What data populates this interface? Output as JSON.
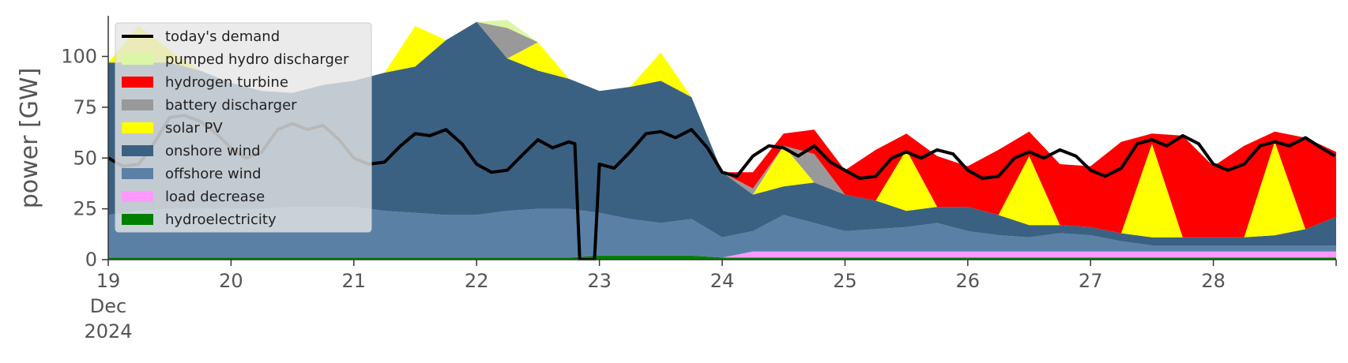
{
  "chart_data": {
    "type": "area",
    "title": "",
    "ylabel": "power [GW]",
    "xlabel": "",
    "ylim": [
      0,
      120
    ],
    "xlim": [
      19,
      29
    ],
    "y_ticks": [
      0,
      25,
      50,
      75,
      100
    ],
    "x_ticks": [
      {
        "value": 19,
        "label": "19",
        "sub1": "Dec",
        "sub2": "2024"
      },
      {
        "value": 20,
        "label": "20"
      },
      {
        "value": 21,
        "label": "21"
      },
      {
        "value": 22,
        "label": "22"
      },
      {
        "value": 23,
        "label": "23"
      },
      {
        "value": 24,
        "label": "24"
      },
      {
        "value": 25,
        "label": "25"
      },
      {
        "value": 26,
        "label": "26"
      },
      {
        "value": 27,
        "label": "27"
      },
      {
        "value": 28,
        "label": "28"
      }
    ],
    "legend_position": "top-left",
    "grid": false,
    "x": [
      19.0,
      19.25,
      19.5,
      19.75,
      20.0,
      20.25,
      20.5,
      20.75,
      21.0,
      21.25,
      21.5,
      21.75,
      22.0,
      22.25,
      22.5,
      22.75,
      23.0,
      23.25,
      23.5,
      23.75,
      24.0,
      24.25,
      24.5,
      24.75,
      25.0,
      25.25,
      25.5,
      25.75,
      26.0,
      26.25,
      26.5,
      26.75,
      27.0,
      27.25,
      27.5,
      27.75,
      28.0,
      28.25,
      28.5,
      28.75,
      29.0
    ],
    "series": [
      {
        "name": "hydroelectricity",
        "color": "#008000",
        "values": [
          1,
          1,
          1,
          1,
          1,
          1,
          1,
          1,
          1,
          1,
          1,
          1,
          1,
          1,
          1,
          1,
          2,
          2,
          2,
          2,
          1,
          1,
          1,
          1,
          1,
          1,
          1,
          1,
          1,
          1,
          1,
          1,
          1,
          1,
          1,
          1,
          1,
          1,
          1,
          1,
          1
        ]
      },
      {
        "name": "load decrease",
        "color": "#ff99ff",
        "values": [
          0,
          0,
          0,
          0,
          0,
          0,
          0,
          0,
          0,
          0,
          0,
          0,
          0,
          0,
          0,
          0,
          0,
          0,
          0,
          0,
          0,
          3,
          3,
          3,
          3,
          3,
          3,
          3,
          3,
          3,
          3,
          3,
          3,
          3,
          3,
          3,
          3,
          3,
          3,
          3,
          3
        ]
      },
      {
        "name": "offshore wind",
        "color": "#5b80a6",
        "values": [
          21,
          23,
          24,
          24,
          24,
          24,
          25,
          25,
          25,
          23,
          22,
          21,
          21,
          23,
          24,
          24,
          21,
          18,
          16,
          18,
          10,
          10,
          18,
          14,
          10,
          11,
          12,
          14,
          10,
          8,
          7,
          9,
          8,
          5,
          3,
          3,
          3,
          3,
          3,
          3,
          3
        ]
      },
      {
        "name": "onshore wind",
        "color": "#3b6182",
        "values": [
          75,
          73,
          72,
          68,
          62,
          58,
          56,
          60,
          62,
          68,
          72,
          86,
          95,
          75,
          68,
          64,
          60,
          65,
          70,
          60,
          32,
          18,
          14,
          20,
          18,
          14,
          8,
          8,
          12,
          10,
          6,
          4,
          4,
          4,
          4,
          4,
          4,
          4,
          5,
          8,
          14
        ]
      },
      {
        "name": "solar PV",
        "color": "#ffff00",
        "values": [
          0,
          18,
          6,
          0,
          0,
          0,
          0,
          0,
          0,
          0,
          20,
          0,
          0,
          0,
          14,
          0,
          0,
          0,
          14,
          0,
          0,
          0,
          20,
          0,
          0,
          0,
          30,
          0,
          0,
          0,
          34,
          0,
          0,
          0,
          46,
          0,
          0,
          0,
          46,
          0,
          0
        ]
      },
      {
        "name": "battery discharger",
        "color": "#999999",
        "values": [
          0,
          0,
          0,
          0,
          0,
          0,
          0,
          0,
          0,
          0,
          0,
          0,
          0,
          15,
          0,
          0,
          0,
          0,
          0,
          0,
          0,
          3,
          0,
          14,
          0,
          0,
          0,
          0,
          0,
          0,
          0,
          0,
          0,
          0,
          0,
          0,
          0,
          0,
          0,
          0,
          0
        ]
      },
      {
        "name": "hydrogen turbine",
        "color": "#ff0000",
        "values": [
          0,
          0,
          0,
          0,
          0,
          0,
          0,
          0,
          0,
          0,
          0,
          0,
          0,
          0,
          0,
          0,
          0,
          0,
          0,
          0,
          0,
          8,
          6,
          12,
          12,
          25,
          8,
          25,
          20,
          32,
          12,
          30,
          30,
          45,
          5,
          50,
          35,
          45,
          5,
          45,
          32
        ]
      },
      {
        "name": "pumped hydro discharger",
        "color": "#dbf7a6",
        "values": [
          0,
          0,
          0,
          0,
          0,
          0,
          0,
          0,
          0,
          0,
          0,
          0,
          0,
          4,
          0,
          0,
          0,
          0,
          0,
          0,
          0,
          0,
          0,
          0,
          0,
          0,
          0,
          0,
          0,
          0,
          0,
          0,
          0,
          0,
          0,
          0,
          0,
          0,
          0,
          0,
          0
        ]
      }
    ],
    "demand": {
      "name": "today's demand",
      "color": "#000000",
      "x": [
        19.0,
        19.12,
        19.25,
        19.38,
        19.5,
        19.62,
        19.75,
        19.88,
        20.0,
        20.12,
        20.25,
        20.38,
        20.5,
        20.62,
        20.75,
        20.88,
        21.0,
        21.12,
        21.25,
        21.38,
        21.5,
        21.62,
        21.75,
        21.88,
        22.0,
        22.12,
        22.25,
        22.38,
        22.5,
        22.62,
        22.75,
        22.8,
        22.84,
        22.96,
        23.0,
        23.12,
        23.25,
        23.38,
        23.5,
        23.62,
        23.75,
        23.88,
        24.0,
        24.12,
        24.25,
        24.38,
        24.5,
        24.62,
        24.75,
        24.88,
        25.0,
        25.12,
        25.25,
        25.38,
        25.5,
        25.62,
        25.75,
        25.88,
        26.0,
        26.12,
        26.25,
        26.38,
        26.5,
        26.62,
        26.75,
        26.88,
        27.0,
        27.12,
        27.25,
        27.38,
        27.5,
        27.62,
        27.75,
        27.88,
        28.0,
        28.12,
        28.25,
        28.38,
        28.5,
        28.62,
        28.75,
        28.88,
        28.99
      ],
      "values": [
        50,
        46,
        47,
        58,
        70,
        71,
        68,
        62,
        55,
        50,
        53,
        64,
        67,
        64,
        66,
        59,
        50,
        47,
        48,
        56,
        62,
        61,
        64,
        57,
        47,
        43,
        44,
        52,
        59,
        55,
        58,
        57,
        0,
        0,
        47,
        45,
        53,
        62,
        63,
        60,
        64,
        55,
        43,
        41,
        51,
        56,
        55,
        51,
        56,
        48,
        44,
        40,
        41,
        50,
        53,
        50,
        54,
        52,
        44,
        40,
        41,
        50,
        53,
        50,
        54,
        51,
        44,
        41,
        45,
        57,
        59,
        56,
        61,
        57,
        47,
        44,
        47,
        56,
        58,
        56,
        60,
        55,
        51
      ]
    },
    "legend_order": [
      "today's demand",
      "pumped hydro discharger",
      "hydrogen turbine",
      "battery discharger",
      "solar PV",
      "onshore wind",
      "offshore wind",
      "load decrease",
      "hydroelectricity"
    ]
  }
}
